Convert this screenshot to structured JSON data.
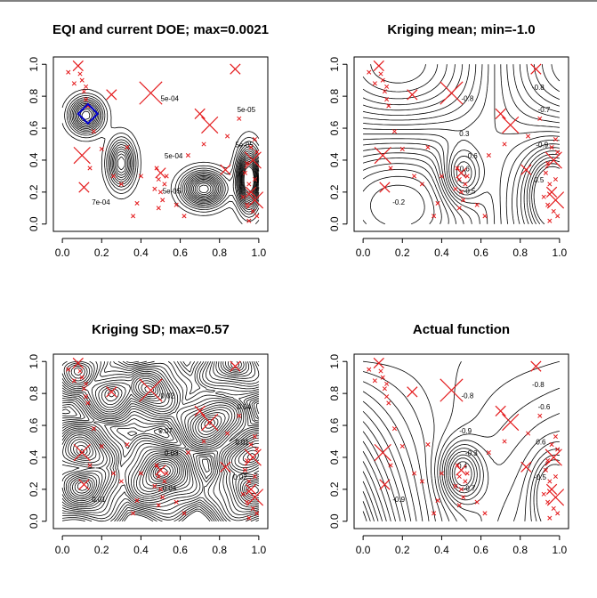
{
  "chart_data": [
    {
      "type": "contour",
      "title": "EQI and current DOE; max=0.0021",
      "x_ticks": [
        "0.0",
        "0.2",
        "0.4",
        "0.6",
        "0.8",
        "1.0"
      ],
      "y_ticks": [
        "0.0",
        "0.2",
        "0.4",
        "0.6",
        "0.8",
        "1.0"
      ],
      "xlim": [
        0,
        1
      ],
      "ylim": [
        0,
        1
      ],
      "contour_labels": [
        "7e-04",
        "5e-04",
        "5e-05",
        "5e-05",
        "5e-05",
        "5e-04"
      ],
      "highlight": {
        "shape": "diamond",
        "color": "#0000cc",
        "x": 0.13,
        "y": 0.69
      }
    },
    {
      "type": "contour",
      "title": "Kriging mean; min=-1.0",
      "x_ticks": [
        "0.0",
        "0.2",
        "0.4",
        "0.6",
        "0.8",
        "1.0"
      ],
      "y_ticks": [
        "0.0",
        "0.2",
        "0.4",
        "0.6",
        "0.8",
        "1.0"
      ],
      "xlim": [
        0,
        1
      ],
      "ylim": [
        0,
        1
      ],
      "contour_labels": [
        "-0.2",
        "-0.6",
        "-0.7",
        "-0.5",
        "-0.9",
        "-0.8",
        "0.5",
        "0.3",
        "-0.8",
        "-0.6"
      ]
    },
    {
      "type": "contour",
      "title": "Kriging SD; max=0.57",
      "x_ticks": [
        "0.0",
        "0.2",
        "0.4",
        "0.6",
        "0.8",
        "1.0"
      ],
      "y_ticks": [
        "0.0",
        "0.2",
        "0.4",
        "0.6",
        "0.8",
        "1.0"
      ],
      "xlim": [
        0,
        1
      ],
      "ylim": [
        0,
        1
      ],
      "contour_labels": [
        "0.01",
        "0.03",
        "0.04",
        "0.04",
        "0.01",
        "0.02",
        "0.02",
        "0.07"
      ]
    },
    {
      "type": "contour",
      "title": "Actual function",
      "x_ticks": [
        "0.0",
        "0.2",
        "0.4",
        "0.6",
        "0.8",
        "1.0"
      ],
      "y_ticks": [
        "0.0",
        "0.2",
        "0.4",
        "0.6",
        "0.8",
        "1.0"
      ],
      "xlim": [
        0,
        1
      ],
      "ylim": [
        0,
        1
      ],
      "contour_labels": [
        "-0.9",
        "-0.3",
        "-0.6",
        "-0.7",
        "0.6",
        "-0.8",
        "-0.5",
        "-0.9",
        "-0.8",
        "0.4"
      ]
    }
  ],
  "doe_points": {
    "marker": "x",
    "color": "#e41a1c",
    "points": [
      {
        "x": 0.08,
        "y": 0.99,
        "s": 2
      },
      {
        "x": 0.09,
        "y": 0.94,
        "s": 1
      },
      {
        "x": 0.1,
        "y": 0.9,
        "s": 1
      },
      {
        "x": 0.12,
        "y": 0.86,
        "s": 1
      },
      {
        "x": 0.11,
        "y": 0.83,
        "s": 1
      },
      {
        "x": 0.12,
        "y": 0.78,
        "s": 1
      },
      {
        "x": 0.13,
        "y": 0.74,
        "s": 1
      },
      {
        "x": 0.1,
        "y": 0.43,
        "s": 3
      },
      {
        "x": 0.11,
        "y": 0.23,
        "s": 2
      },
      {
        "x": 0.14,
        "y": 0.35,
        "s": 1
      },
      {
        "x": 0.25,
        "y": 0.81,
        "s": 2
      },
      {
        "x": 0.45,
        "y": 0.82,
        "s": 4
      },
      {
        "x": 0.38,
        "y": 0.13,
        "s": 1
      },
      {
        "x": 0.36,
        "y": 0.05,
        "s": 1
      },
      {
        "x": 0.26,
        "y": 0.3,
        "s": 1
      },
      {
        "x": 0.3,
        "y": 0.25,
        "s": 1
      },
      {
        "x": 0.48,
        "y": 0.35,
        "s": 1
      },
      {
        "x": 0.5,
        "y": 0.32,
        "s": 2
      },
      {
        "x": 0.49,
        "y": 0.28,
        "s": 1
      },
      {
        "x": 0.52,
        "y": 0.25,
        "s": 1
      },
      {
        "x": 0.5,
        "y": 0.2,
        "s": 1
      },
      {
        "x": 0.53,
        "y": 0.3,
        "s": 1
      },
      {
        "x": 0.47,
        "y": 0.22,
        "s": 1
      },
      {
        "x": 0.51,
        "y": 0.15,
        "s": 1
      },
      {
        "x": 0.49,
        "y": 0.1,
        "s": 1
      },
      {
        "x": 0.64,
        "y": 0.43,
        "s": 1
      },
      {
        "x": 0.7,
        "y": 0.69,
        "s": 2
      },
      {
        "x": 0.75,
        "y": 0.62,
        "s": 3
      },
      {
        "x": 0.72,
        "y": 0.5,
        "s": 1
      },
      {
        "x": 0.88,
        "y": 0.97,
        "s": 2
      },
      {
        "x": 0.83,
        "y": 0.34,
        "s": 2
      },
      {
        "x": 0.94,
        "y": 0.38,
        "s": 1
      },
      {
        "x": 0.97,
        "y": 0.4,
        "s": 3
      },
      {
        "x": 0.98,
        "y": 0.53,
        "s": 1
      },
      {
        "x": 0.96,
        "y": 0.48,
        "s": 1
      },
      {
        "x": 0.99,
        "y": 0.45,
        "s": 1
      },
      {
        "x": 0.95,
        "y": 0.25,
        "s": 1
      },
      {
        "x": 0.96,
        "y": 0.2,
        "s": 2
      },
      {
        "x": 0.98,
        "y": 0.15,
        "s": 3
      },
      {
        "x": 0.94,
        "y": 0.12,
        "s": 1
      },
      {
        "x": 0.97,
        "y": 0.08,
        "s": 1
      },
      {
        "x": 0.99,
        "y": 0.05,
        "s": 1
      },
      {
        "x": 0.95,
        "y": 0.02,
        "s": 1
      },
      {
        "x": 0.92,
        "y": 0.17,
        "s": 1
      },
      {
        "x": 0.98,
        "y": 0.28,
        "s": 1
      },
      {
        "x": 0.03,
        "y": 0.95,
        "s": 1
      },
      {
        "x": 0.06,
        "y": 0.88,
        "s": 1
      },
      {
        "x": 0.16,
        "y": 0.58,
        "s": 1
      },
      {
        "x": 0.33,
        "y": 0.48,
        "s": 1
      },
      {
        "x": 0.2,
        "y": 0.47,
        "s": 1
      },
      {
        "x": 0.4,
        "y": 0.3,
        "s": 1
      },
      {
        "x": 0.58,
        "y": 0.12,
        "s": 1
      },
      {
        "x": 0.62,
        "y": 0.05,
        "s": 1
      },
      {
        "x": 0.84,
        "y": 0.55,
        "s": 1
      },
      {
        "x": 0.9,
        "y": 0.66,
        "s": 1
      },
      {
        "x": 0.93,
        "y": 0.32,
        "s": 1
      }
    ]
  }
}
